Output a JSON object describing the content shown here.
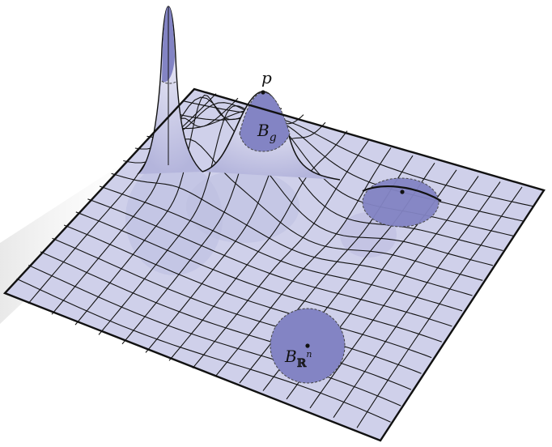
{
  "figure": {
    "labels": {
      "point": "p",
      "geodesic_ball_main": "B",
      "geodesic_ball_sub": "g",
      "euclidean_ball_main": "B",
      "euclidean_ball_sub": "ℝ",
      "euclidean_ball_sup": "n"
    },
    "colors": {
      "surface_fill": "#cfd0ea",
      "surface_shade": "#b6b7dc",
      "ball_fill": "#8384c4",
      "grid_line": "#111111",
      "background": "#ffffff"
    }
  }
}
